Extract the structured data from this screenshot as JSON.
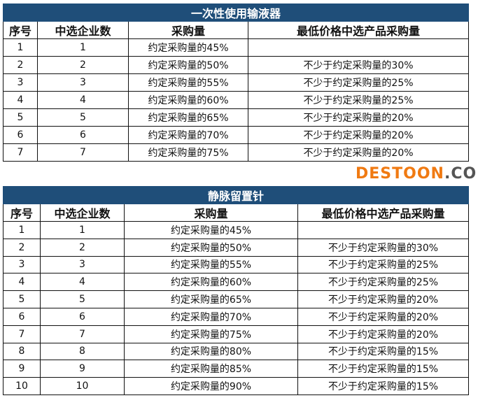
{
  "tables": [
    {
      "title": "一次性使用输液器",
      "headers": [
        "序号",
        "中选企业数",
        "采购量",
        "最低价格中选产品采购量"
      ],
      "rows": [
        [
          "1",
          "1",
          "约定采购量的45%",
          ""
        ],
        [
          "2",
          "2",
          "约定采购量的50%",
          "不少于约定采购量的30%"
        ],
        [
          "3",
          "3",
          "约定采购量的55%",
          "不少于约定采购量的25%"
        ],
        [
          "4",
          "4",
          "约定采购量的60%",
          "不少于约定采购量的25%"
        ],
        [
          "5",
          "5",
          "约定采购量的65%",
          "不少于约定采购量的20%"
        ],
        [
          "6",
          "6",
          "约定采购量的70%",
          "不少于约定采购量的20%"
        ],
        [
          "7",
          "7",
          "约定采购量的75%",
          "不少于约定采购量的20%"
        ]
      ]
    },
    {
      "title": "静脉留置针",
      "headers": [
        "序号",
        "中选企业数",
        "采购量",
        "最低价格中选产品采购量"
      ],
      "rows": [
        [
          "1",
          "1",
          "约定采购量的45%",
          ""
        ],
        [
          "2",
          "2",
          "约定采购量的50%",
          "不少于约定采购量的30%"
        ],
        [
          "3",
          "3",
          "约定采购量的55%",
          "不少于约定采购量的25%"
        ],
        [
          "4",
          "4",
          "约定采购量的60%",
          "不少于约定采购量的25%"
        ],
        [
          "5",
          "5",
          "约定采购量的65%",
          "不少于约定采购量的20%"
        ],
        [
          "6",
          "6",
          "约定采购量的70%",
          "不少于约定采购量的20%"
        ],
        [
          "7",
          "7",
          "约定采购量的75%",
          "不少于约定采购量的20%"
        ],
        [
          "8",
          "8",
          "约定采购量的80%",
          "不少于约定采购量的15%"
        ],
        [
          "9",
          "9",
          "约定采购量的85%",
          "不少于约定采购量的15%"
        ],
        [
          "10",
          "10",
          "约定采购量的90%",
          "不少于约定采购量的15%"
        ]
      ]
    }
  ],
  "watermark": {
    "brand": "DESTOON",
    ".com": ".COM"
  },
  "colors": {
    "title_bg": "#1f4e79",
    "watermark": "#f07a12"
  }
}
